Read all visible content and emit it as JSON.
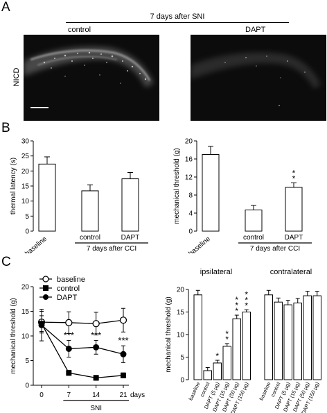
{
  "panels": {
    "a": "A",
    "b": "B",
    "c": "C"
  },
  "panel_a": {
    "header": "7 days after SNI",
    "left_label": "control",
    "right_label": "DAPT",
    "side_label": "NICD"
  },
  "chart_data": [
    {
      "type": "bar",
      "categories": [
        "baseline",
        "control",
        "DAPT"
      ],
      "values": [
        22.3,
        13.4,
        17.4
      ],
      "errors": [
        2.4,
        2.0,
        2.1
      ],
      "ylabel": "thermal latency (s)",
      "ylim": [
        0,
        30
      ],
      "yticks": [
        0,
        5,
        10,
        15,
        20,
        25,
        30
      ],
      "group_label": "7 days after CCI",
      "group_members": [
        "control",
        "DAPT"
      ],
      "significance": [
        "",
        "",
        ""
      ]
    },
    {
      "type": "bar",
      "categories": [
        "baseline",
        "control",
        "DAPT"
      ],
      "values": [
        17.0,
        4.7,
        9.7
      ],
      "errors": [
        1.8,
        1.0,
        1.0
      ],
      "ylabel": "mechanical threshold (g)",
      "ylim": [
        0,
        20
      ],
      "yticks": [
        0,
        4,
        8,
        12,
        16,
        20
      ],
      "group_label": "7 days after CCI",
      "group_members": [
        "control",
        "DAPT"
      ],
      "significance": [
        "",
        "",
        "**"
      ]
    },
    {
      "type": "line",
      "x": [
        0,
        7,
        14,
        21
      ],
      "xticks": [
        "0",
        "7",
        "14",
        "21"
      ],
      "xunit": "days",
      "xlabel": "SNI",
      "ylabel": "mechanical threshold (g)",
      "ylim": [
        0,
        20
      ],
      "yticks": [
        0,
        5,
        10,
        15,
        20
      ],
      "series": [
        {
          "name": "baseline",
          "marker": "open-circle",
          "values": [
            12.8,
            12.7,
            12.5,
            13.2
          ],
          "errors": [
            2.2,
            2.2,
            2.3,
            2.4
          ]
        },
        {
          "name": "control",
          "marker": "filled-square",
          "values": [
            12.5,
            2.5,
            1.5,
            2.0
          ],
          "errors": [
            1.6,
            0.5,
            0.5,
            0.5
          ]
        },
        {
          "name": "DAPT",
          "marker": "filled-circle",
          "values": [
            12.2,
            7.4,
            7.7,
            6.3
          ],
          "errors": [
            3.2,
            1.7,
            1.4,
            1.7
          ]
        }
      ],
      "annotations": [
        "",
        "***",
        "***",
        "***"
      ]
    },
    {
      "type": "bar",
      "groups": [
        {
          "title": "ipsilateral",
          "categories": [
            "baseline",
            "control",
            "DAPT (5 µg)",
            "DAPT (15 µg)",
            "DAPT (50 µg)",
            "DAPT (150 µg)"
          ],
          "values": [
            18.8,
            2.0,
            3.7,
            7.4,
            13.5,
            15.0
          ],
          "errors": [
            1.0,
            0.7,
            0.6,
            0.6,
            0.8,
            0.5
          ],
          "significance": [
            "",
            "",
            "*",
            "**",
            "***",
            "***"
          ]
        },
        {
          "title": "contralateral",
          "categories": [
            "baseline",
            "control",
            "DAPT (5 µg)",
            "DAPT (15 µg)",
            "DAPT (50 µg)",
            "DAPT (150 µg)"
          ],
          "values": [
            18.8,
            17.2,
            16.6,
            17.0,
            18.6,
            18.6
          ],
          "errors": [
            1.0,
            0.9,
            1.0,
            1.0,
            1.0,
            1.0
          ],
          "significance": [
            "",
            "",
            "",
            "",
            "",
            ""
          ]
        }
      ],
      "ylabel": "mechanical threshold (g)",
      "ylim": [
        0,
        20
      ],
      "yticks": [
        0,
        5,
        10,
        15,
        20
      ]
    }
  ]
}
